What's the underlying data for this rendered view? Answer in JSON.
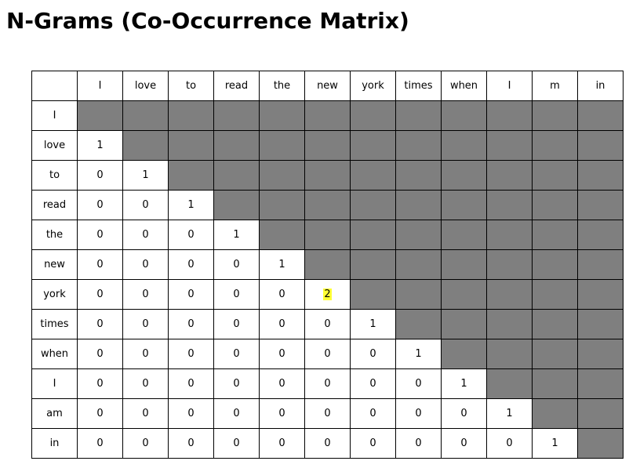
{
  "title": "N-Grams (Co-Occurrence Matrix)",
  "colors": {
    "shaded_cell": "#7f7f7f",
    "highlight": "#ffff33"
  },
  "column_headers": [
    "I",
    "love",
    "to",
    "read",
    "the",
    "new",
    "york",
    "times",
    "when",
    "I",
    "m",
    "in"
  ],
  "rows": [
    {
      "label": "I",
      "values": []
    },
    {
      "label": "love",
      "values": [
        "1"
      ]
    },
    {
      "label": "to",
      "values": [
        "0",
        "1"
      ]
    },
    {
      "label": "read",
      "values": [
        "0",
        "0",
        "1"
      ]
    },
    {
      "label": "the",
      "values": [
        "0",
        "0",
        "0",
        "1"
      ]
    },
    {
      "label": "new",
      "values": [
        "0",
        "0",
        "0",
        "0",
        "1"
      ]
    },
    {
      "label": "york",
      "values": [
        "0",
        "0",
        "0",
        "0",
        "0",
        "2"
      ]
    },
    {
      "label": "times",
      "values": [
        "0",
        "0",
        "0",
        "0",
        "0",
        "0",
        "1"
      ]
    },
    {
      "label": "when",
      "values": [
        "0",
        "0",
        "0",
        "0",
        "0",
        "0",
        "0",
        "1"
      ]
    },
    {
      "label": "I",
      "values": [
        "0",
        "0",
        "0",
        "0",
        "0",
        "0",
        "0",
        "0",
        "1"
      ]
    },
    {
      "label": "am",
      "values": [
        "0",
        "0",
        "0",
        "0",
        "0",
        "0",
        "0",
        "0",
        "0",
        "1"
      ]
    },
    {
      "label": "in",
      "values": [
        "0",
        "0",
        "0",
        "0",
        "0",
        "0",
        "0",
        "0",
        "0",
        "0",
        "1"
      ]
    }
  ],
  "highlighted_cell": {
    "row": 6,
    "col": 5
  }
}
